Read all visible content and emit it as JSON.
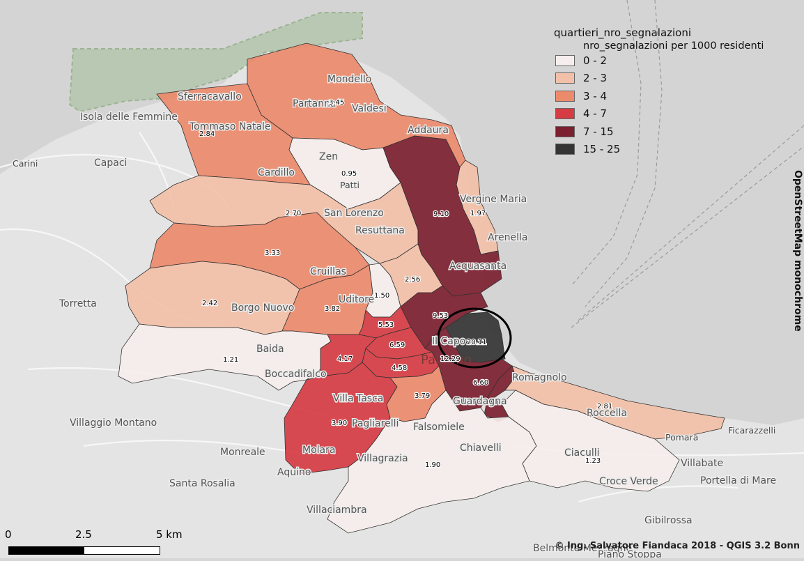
{
  "legend": {
    "title": "quartieri_nro_segnalazioni",
    "subtitle": "nro_segnalazioni per 1000 residenti",
    "classes": [
      {
        "label": "0 - 2",
        "color": "#f6eeec"
      },
      {
        "label": "2 - 3",
        "color": "#f2c0a8"
      },
      {
        "label": "3 - 4",
        "color": "#ec8a6c"
      },
      {
        "label": "4 - 7",
        "color": "#d63c43"
      },
      {
        "label": "7 - 15",
        "color": "#7c2030"
      },
      {
        "label": "15 - 25",
        "color": "#343434"
      }
    ]
  },
  "basemap_credit": "OpenStreetMap monochrome",
  "author_credit": "© Ing. Salvatore Fiandaca 2018 - QGIS 3.2 Bonn",
  "scale_bar": {
    "labels": [
      "0",
      "2.5",
      "5 km"
    ]
  },
  "district_values": [
    {
      "id": "mondello",
      "value": "3.45",
      "cls": 2
    },
    {
      "id": "tommaso-natale",
      "value": "2.84",
      "cls": 2
    },
    {
      "id": "zen",
      "value": "0.95",
      "cls": 0
    },
    {
      "id": "arenella",
      "value": "1.97",
      "cls": 1
    },
    {
      "id": "resuttana",
      "value": "2.70",
      "cls": 1
    },
    {
      "id": "cruillas",
      "value": "3.33",
      "cls": 2
    },
    {
      "id": "acquasanta",
      "value": "9.10",
      "cls": 4
    },
    {
      "id": "borgo-nuovo",
      "value": "2.42",
      "cls": 1
    },
    {
      "id": "uditore",
      "value": "3.82",
      "cls": 2
    },
    {
      "id": "noce",
      "value": "1.50",
      "cls": 0
    },
    {
      "id": "libertà",
      "value": "2.56",
      "cls": 1
    },
    {
      "id": "zisa",
      "value": "5.53",
      "cls": 3
    },
    {
      "id": "politeama",
      "value": "9.53",
      "cls": 4
    },
    {
      "id": "centro-storico",
      "value": "20.11",
      "cls": 5
    },
    {
      "id": "boccadifalco",
      "value": "1.21",
      "cls": 0
    },
    {
      "id": "altarello",
      "value": "4.17",
      "cls": 3
    },
    {
      "id": "cuba",
      "value": "6.59",
      "cls": 3
    },
    {
      "id": "palazzo-reale",
      "value": "4.58",
      "cls": 3
    },
    {
      "id": "oreto",
      "value": "12.29",
      "cls": 4
    },
    {
      "id": "brancaccio",
      "value": "6.60",
      "cls": 4
    },
    {
      "id": "romagnolo",
      "value": "2.81",
      "cls": 1
    },
    {
      "id": "villa-tasca",
      "value": "3.90",
      "cls": 3
    },
    {
      "id": "montegrappa",
      "value": "3.79",
      "cls": 2
    },
    {
      "id": "falsomiele",
      "value": "1.90",
      "cls": 0
    },
    {
      "id": "ciaculli",
      "value": "1.23",
      "cls": 0
    }
  ],
  "place_names": [
    {
      "text": "Isola delle Femmine",
      "size": "big"
    },
    {
      "text": "Capaci",
      "size": "big"
    },
    {
      "text": "Carini",
      "size": "normal"
    },
    {
      "text": "Sferracavallo",
      "size": "big"
    },
    {
      "text": "Mondello",
      "size": "big"
    },
    {
      "text": "Partanna",
      "size": "big"
    },
    {
      "text": "Valdesi",
      "size": "big"
    },
    {
      "text": "Tommaso Natale",
      "size": "big"
    },
    {
      "text": "Addaura",
      "size": "big"
    },
    {
      "text": "Zen",
      "size": "big"
    },
    {
      "text": "Cardillo",
      "size": "big"
    },
    {
      "text": "Patti",
      "size": "normal"
    },
    {
      "text": "Vergine Maria",
      "size": "big"
    },
    {
      "text": "San Lorenzo",
      "size": "big"
    },
    {
      "text": "Resuttana",
      "size": "big"
    },
    {
      "text": "Arenella",
      "size": "big"
    },
    {
      "text": "Acquasanta",
      "size": "big"
    },
    {
      "text": "Cruillas",
      "size": "big"
    },
    {
      "text": "Torretta",
      "size": "big"
    },
    {
      "text": "Borgo Nuovo",
      "size": "big"
    },
    {
      "text": "Uditore",
      "size": "big"
    },
    {
      "text": "Il Capo",
      "size": "big"
    },
    {
      "text": "Baida",
      "size": "big"
    },
    {
      "text": "Boccadifalco",
      "size": "big"
    },
    {
      "text": "Palermo",
      "size": "huge"
    },
    {
      "text": "Romagnolo",
      "size": "big"
    },
    {
      "text": "Villa Tasca",
      "size": "big"
    },
    {
      "text": "Guardagna",
      "size": "big"
    },
    {
      "text": "Villaggio Montano",
      "size": "big"
    },
    {
      "text": "Pagliarelli",
      "size": "big"
    },
    {
      "text": "Falsomiele",
      "size": "big"
    },
    {
      "text": "Roccella",
      "size": "big"
    },
    {
      "text": "Ficarazzelli",
      "size": "normal"
    },
    {
      "text": "Chiavelli",
      "size": "big"
    },
    {
      "text": "Pomara",
      "size": "normal"
    },
    {
      "text": "Molara",
      "size": "big"
    },
    {
      "text": "Monreale",
      "size": "big"
    },
    {
      "text": "Villagrazia",
      "size": "big"
    },
    {
      "text": "Ciaculli",
      "size": "big"
    },
    {
      "text": "Villabate",
      "size": "big"
    },
    {
      "text": "Aquino",
      "size": "big"
    },
    {
      "text": "Santa Rosalia",
      "size": "big"
    },
    {
      "text": "Croce Verde",
      "size": "big"
    },
    {
      "text": "Portella di Mare",
      "size": "big"
    },
    {
      "text": "Villaciambra",
      "size": "big"
    },
    {
      "text": "Gibilrossa",
      "size": "big"
    },
    {
      "text": "Belmonte Mezzagno",
      "size": "big"
    },
    {
      "text": "Piano Stoppa",
      "size": "big"
    }
  ],
  "highlight": {
    "value": "20.11"
  }
}
